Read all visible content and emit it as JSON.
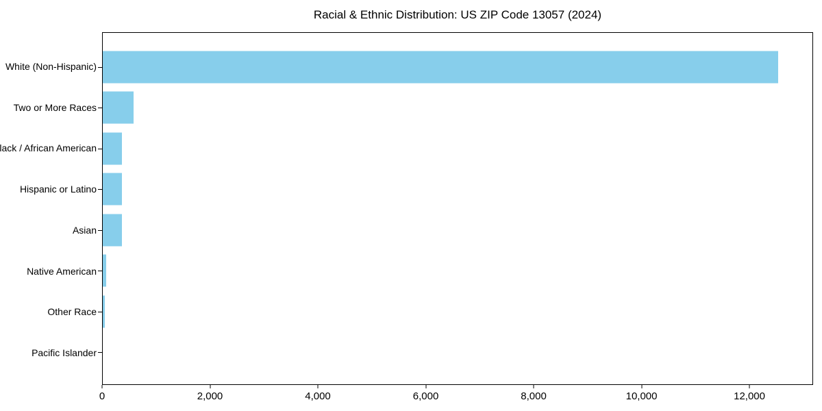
{
  "chart_title": "Racial & Ethnic Distribution: US ZIP Code 13057 (2024)",
  "chart_data": {
    "type": "bar",
    "orientation": "horizontal",
    "title": "Racial & Ethnic Distribution: US ZIP Code 13057 (2024)",
    "categories": [
      "White (Non-Hispanic)",
      "Two or More Races",
      "Black / African American",
      "Hispanic or Latino",
      "Asian",
      "Native American",
      "Other Race",
      "Pacific Islander"
    ],
    "values": [
      12540,
      570,
      360,
      357,
      352,
      62,
      38,
      0
    ],
    "xlabel": "",
    "ylabel": "",
    "xlim": [
      0,
      13180
    ],
    "xticks": [
      0,
      2000,
      4000,
      6000,
      8000,
      10000,
      12000
    ],
    "xtick_labels": [
      "0",
      "2,000",
      "4,000",
      "6,000",
      "8,000",
      "10,000",
      "12,000"
    ],
    "grid": false,
    "legend": null,
    "bar_color": "#87CEEB",
    "axis_color": "#000000",
    "background_color": "#ffffff"
  }
}
